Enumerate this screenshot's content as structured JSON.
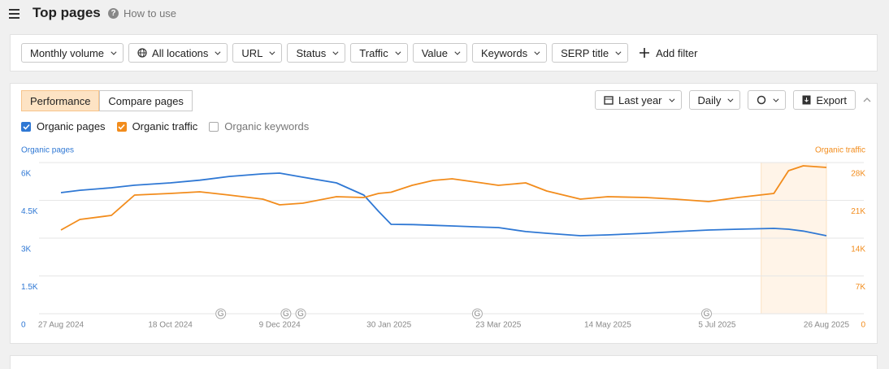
{
  "header": {
    "title": "Top pages",
    "help": "How to use"
  },
  "filters": [
    "Monthly volume",
    "All locations",
    "URL",
    "Status",
    "Traffic",
    "Value",
    "Keywords",
    "SERP title"
  ],
  "add_filter": "Add filter",
  "tabs": [
    {
      "label": "Performance",
      "active": true
    },
    {
      "label": "Compare pages",
      "active": false
    }
  ],
  "controls": {
    "period": "Last year",
    "interval": "Daily",
    "export": "Export"
  },
  "checkboxes": [
    {
      "label": "Organic pages",
      "checked": true,
      "color": "#2f78d4"
    },
    {
      "label": "Organic traffic",
      "checked": true,
      "color": "#f28c1c"
    },
    {
      "label": "Organic keywords",
      "checked": false,
      "color": "#aaaaaa"
    }
  ],
  "chart_data": {
    "type": "line",
    "y_title": "Organic pages",
    "y2_title": "Organic traffic",
    "x": [
      "2024-08-27",
      "2024-09-05",
      "2024-09-20",
      "2024-10-01",
      "2024-10-18",
      "2024-11-01",
      "2024-11-15",
      "2024-12-01",
      "2024-12-09",
      "2024-12-20",
      "2025-01-05",
      "2025-01-18",
      "2025-01-25",
      "2025-01-31",
      "2025-02-10",
      "2025-02-20",
      "2025-03-01",
      "2025-03-15",
      "2025-03-23",
      "2025-04-05",
      "2025-04-15",
      "2025-05-01",
      "2025-05-14",
      "2025-06-01",
      "2025-06-15",
      "2025-07-01",
      "2025-07-15",
      "2025-08-01",
      "2025-08-08",
      "2025-08-15",
      "2025-08-26"
    ],
    "series": [
      {
        "name": "Organic pages",
        "color": "#2f78d4",
        "axis": "y",
        "values": [
          4806,
          4900,
          5000,
          5100,
          5194,
          5300,
          5450,
          5550,
          5581,
          5419,
          5194,
          4710,
          4065,
          3548,
          3540,
          3510,
          3484,
          3440,
          3419,
          3260,
          3194,
          3097,
          3129,
          3194,
          3258,
          3323,
          3355,
          3387,
          3355,
          3280,
          3097
        ]
      },
      {
        "name": "Organic traffic",
        "color": "#f28c1c",
        "axis": "y2",
        "values": [
          15505,
          17462,
          18215,
          21978,
          22280,
          22581,
          21978,
          21226,
          20172,
          20473,
          21677,
          21527,
          22280,
          22500,
          23785,
          24688,
          24989,
          24237,
          23785,
          24237,
          22731,
          21226,
          21677,
          21527,
          21226,
          20774,
          21527,
          22280,
          26495,
          27398,
          27097
        ]
      }
    ],
    "xlim": [
      "2024-08-27",
      "2025-08-26"
    ],
    "xticks": [
      {
        "value": "2024-08-27",
        "label": "27 Aug 2024"
      },
      {
        "value": "2024-10-18",
        "label": "18 Oct 2024"
      },
      {
        "value": "2024-12-09",
        "label": "9 Dec 2024"
      },
      {
        "value": "2025-01-30",
        "label": "30 Jan 2025"
      },
      {
        "value": "2025-03-23",
        "label": "23 Mar 2025"
      },
      {
        "value": "2025-05-14",
        "label": "14 May 2025"
      },
      {
        "value": "2025-07-05",
        "label": "5 Jul 2025"
      },
      {
        "value": "2025-08-26",
        "label": "26 Aug 2025"
      }
    ],
    "ylim": [
      0,
      6000
    ],
    "yticks": [
      0,
      {
        "value": 1500,
        "label": "1.5K"
      },
      {
        "value": 3000,
        "label": "3K"
      },
      {
        "value": 4500,
        "label": "4.5K"
      },
      {
        "value": 6000,
        "label": "6K"
      }
    ],
    "y2lim": [
      0,
      28000
    ],
    "y2ticks": [
      0,
      {
        "value": 7000,
        "label": "7K"
      },
      {
        "value": 14000,
        "label": "14K"
      },
      {
        "value": 21000,
        "label": "21K"
      },
      {
        "value": 28000,
        "label": "28K"
      }
    ],
    "grid": true,
    "highlight": [
      "2025-07-26",
      "2025-08-26"
    ],
    "annotations": [
      {
        "x": "2024-11-11",
        "label": "G"
      },
      {
        "x": "2024-12-12",
        "label": "G"
      },
      {
        "x": "2024-12-19",
        "label": "G"
      },
      {
        "x": "2025-03-13",
        "label": "G"
      },
      {
        "x": "2025-06-30",
        "label": "G"
      }
    ]
  }
}
